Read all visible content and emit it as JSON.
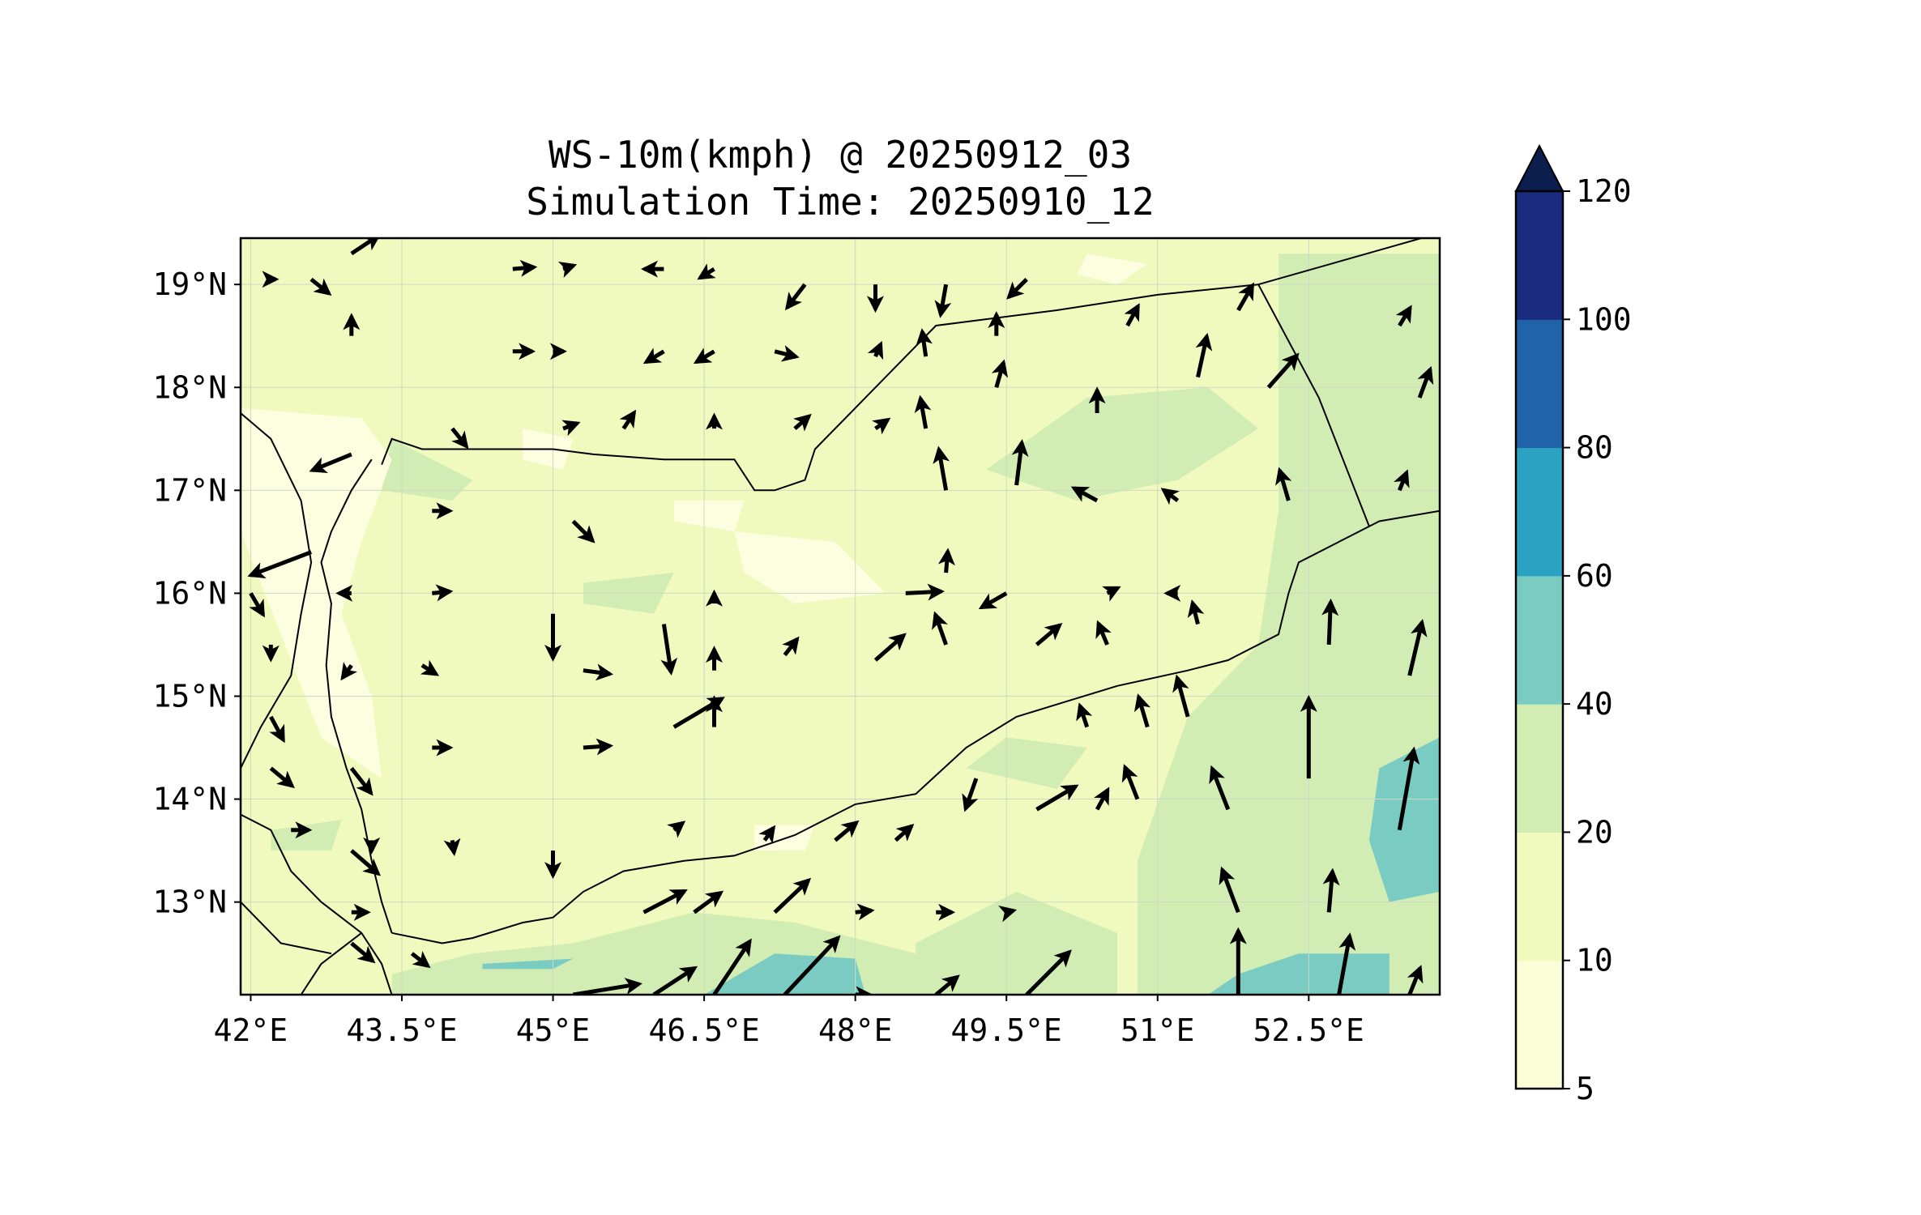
{
  "title": {
    "line1": "WS-10m(kmph) @ 20250912_03",
    "line2": "Simulation Time: 20250910_12"
  },
  "map": {
    "lon_range": [
      41.9,
      53.8
    ],
    "lat_range": [
      12.1,
      19.45
    ],
    "lon_ticks": [
      {
        "value": 42.0,
        "label": "42°E"
      },
      {
        "value": 43.5,
        "label": "43.5°E"
      },
      {
        "value": 45.0,
        "label": "45°E"
      },
      {
        "value": 46.5,
        "label": "46.5°E"
      },
      {
        "value": 48.0,
        "label": "48°E"
      },
      {
        "value": 49.5,
        "label": "49.5°E"
      },
      {
        "value": 51.0,
        "label": "51°E"
      },
      {
        "value": 52.5,
        "label": "52.5°E"
      }
    ],
    "lat_ticks": [
      {
        "value": 19,
        "label": "19°N"
      },
      {
        "value": 18,
        "label": "18°N"
      },
      {
        "value": 17,
        "label": "17°N"
      },
      {
        "value": 16,
        "label": "16°N"
      },
      {
        "value": 15,
        "label": "15°N"
      },
      {
        "value": 14,
        "label": "14°N"
      },
      {
        "value": 13,
        "label": "13°N"
      }
    ],
    "gridlines": true,
    "colors": {
      "land_fill": "#f0f9be",
      "mid_fill": "#d2edb4",
      "high_fill": "#7accc3",
      "low_fill": "#fdfee0",
      "border": "#000000",
      "arrow": "#000000"
    }
  },
  "colorbar": {
    "labels": [
      "5",
      "10",
      "20",
      "40",
      "60",
      "80",
      "100",
      "120"
    ],
    "levels": [
      5,
      10,
      20,
      40,
      60,
      80,
      100,
      120
    ],
    "colors": [
      "#fcfed8",
      "#f0f9be",
      "#d2edb4",
      "#7accc3",
      "#2ca2c2",
      "#2163a9",
      "#1b2b7f"
    ],
    "extend_color": "#0c1e4d",
    "extend": "max"
  },
  "wind_vectors": [
    {
      "lon": 42.2,
      "lat": 19.05,
      "u": 0.0,
      "v": 0.0
    },
    {
      "lon": 42.6,
      "lat": 19.05,
      "u": 1.0,
      "v": -0.8
    },
    {
      "lon": 43.0,
      "lat": 19.3,
      "u": 1.5,
      "v": 1.0
    },
    {
      "lon": 43.0,
      "lat": 18.5,
      "u": 0.0,
      "v": 1.1
    },
    {
      "lon": 43.0,
      "lat": 17.35,
      "u": -2.2,
      "v": -0.9
    },
    {
      "lon": 42.6,
      "lat": 16.4,
      "u": -3.4,
      "v": -1.3
    },
    {
      "lon": 44.6,
      "lat": 19.15,
      "u": 1.2,
      "v": 0.1
    },
    {
      "lon": 45.1,
      "lat": 19.15,
      "u": 0.6,
      "v": 0.2
    },
    {
      "lon": 46.1,
      "lat": 19.15,
      "u": -1.1,
      "v": 0.0
    },
    {
      "lon": 46.6,
      "lat": 19.15,
      "u": -0.8,
      "v": -0.5
    },
    {
      "lon": 47.5,
      "lat": 19.0,
      "u": -1.0,
      "v": -1.3
    },
    {
      "lon": 48.2,
      "lat": 19.0,
      "u": 0.0,
      "v": -1.4
    },
    {
      "lon": 48.9,
      "lat": 19.0,
      "u": -0.3,
      "v": -1.7
    },
    {
      "lon": 49.7,
      "lat": 19.05,
      "u": -1.0,
      "v": -1.0
    },
    {
      "lon": 44.6,
      "lat": 18.35,
      "u": 1.1,
      "v": 0.0
    },
    {
      "lon": 45.0,
      "lat": 18.35,
      "u": 0.6,
      "v": 0.0
    },
    {
      "lon": 46.1,
      "lat": 18.35,
      "u": -1.0,
      "v": -0.6
    },
    {
      "lon": 46.6,
      "lat": 18.35,
      "u": -1.0,
      "v": -0.6
    },
    {
      "lon": 47.2,
      "lat": 18.35,
      "u": 1.2,
      "v": -0.3
    },
    {
      "lon": 48.2,
      "lat": 18.3,
      "u": 0.3,
      "v": 0.7
    },
    {
      "lon": 44.0,
      "lat": 17.6,
      "u": 0.8,
      "v": -1.0
    },
    {
      "lon": 45.1,
      "lat": 17.6,
      "u": 0.8,
      "v": 0.3
    },
    {
      "lon": 45.7,
      "lat": 17.6,
      "u": 0.6,
      "v": 0.9
    },
    {
      "lon": 46.6,
      "lat": 17.6,
      "u": 0.0,
      "v": 0.7
    },
    {
      "lon": 47.4,
      "lat": 17.6,
      "u": 0.8,
      "v": 0.7
    },
    {
      "lon": 48.2,
      "lat": 17.6,
      "u": 0.7,
      "v": 0.5
    },
    {
      "lon": 48.7,
      "lat": 17.6,
      "u": -0.3,
      "v": 1.7
    },
    {
      "lon": 48.7,
      "lat": 18.3,
      "u": -0.2,
      "v": 1.4
    },
    {
      "lon": 49.4,
      "lat": 18.0,
      "u": 0.4,
      "v": 1.4
    },
    {
      "lon": 49.4,
      "lat": 18.5,
      "u": 0.0,
      "v": 1.2
    },
    {
      "lon": 49.6,
      "lat": 17.05,
      "u": 0.3,
      "v": 2.4
    },
    {
      "lon": 50.4,
      "lat": 17.75,
      "u": 0.0,
      "v": 1.3
    },
    {
      "lon": 50.7,
      "lat": 18.6,
      "u": 0.6,
      "v": 1.1
    },
    {
      "lon": 51.4,
      "lat": 18.1,
      "u": 0.5,
      "v": 2.3
    },
    {
      "lon": 51.8,
      "lat": 18.75,
      "u": 0.8,
      "v": 1.4
    },
    {
      "lon": 52.1,
      "lat": 18.0,
      "u": 1.6,
      "v": 1.8
    },
    {
      "lon": 53.4,
      "lat": 18.6,
      "u": 0.6,
      "v": 1.0
    },
    {
      "lon": 53.6,
      "lat": 17.9,
      "u": 0.6,
      "v": 1.6
    },
    {
      "lon": 53.4,
      "lat": 17.0,
      "u": 0.4,
      "v": 1.0
    },
    {
      "lon": 52.3,
      "lat": 16.9,
      "u": -0.5,
      "v": 1.7
    },
    {
      "lon": 50.4,
      "lat": 16.9,
      "u": -1.3,
      "v": 0.7
    },
    {
      "lon": 51.2,
      "lat": 16.9,
      "u": -0.8,
      "v": 0.6
    },
    {
      "lon": 48.9,
      "lat": 17.0,
      "u": -0.4,
      "v": 2.3
    },
    {
      "lon": 43.8,
      "lat": 16.8,
      "u": 1.0,
      "v": 0.0
    },
    {
      "lon": 45.2,
      "lat": 16.7,
      "u": 1.1,
      "v": -1.1
    },
    {
      "lon": 43.0,
      "lat": 16.0,
      "u": -0.7,
      "v": 0.0
    },
    {
      "lon": 43.8,
      "lat": 16.0,
      "u": 1.0,
      "v": 0.1
    },
    {
      "lon": 45.0,
      "lat": 15.8,
      "u": 0.0,
      "v": -2.5
    },
    {
      "lon": 46.1,
      "lat": 15.7,
      "u": 0.4,
      "v": -2.7
    },
    {
      "lon": 46.6,
      "lat": 15.9,
      "u": 0.0,
      "v": 0.6
    },
    {
      "lon": 48.5,
      "lat": 16.0,
      "u": 2.0,
      "v": 0.1
    },
    {
      "lon": 48.9,
      "lat": 16.2,
      "u": 0.1,
      "v": 1.2
    },
    {
      "lon": 49.5,
      "lat": 16.0,
      "u": -1.4,
      "v": -0.8
    },
    {
      "lon": 50.5,
      "lat": 16.0,
      "u": 0.6,
      "v": 0.3
    },
    {
      "lon": 51.2,
      "lat": 16.0,
      "u": -0.6,
      "v": 0.0
    },
    {
      "lon": 42.0,
      "lat": 16.0,
      "u": 0.7,
      "v": -1.2
    },
    {
      "lon": 42.2,
      "lat": 15.5,
      "u": 0.0,
      "v": -0.8
    },
    {
      "lon": 43.0,
      "lat": 15.3,
      "u": -0.5,
      "v": -0.7
    },
    {
      "lon": 43.7,
      "lat": 15.3,
      "u": 0.8,
      "v": -0.5
    },
    {
      "lon": 45.3,
      "lat": 15.25,
      "u": 1.5,
      "v": -0.2
    },
    {
      "lon": 46.6,
      "lat": 15.25,
      "u": 0.0,
      "v": 1.2
    },
    {
      "lon": 47.3,
      "lat": 15.4,
      "u": 0.7,
      "v": 0.9
    },
    {
      "lon": 48.2,
      "lat": 15.35,
      "u": 1.6,
      "v": 1.4
    },
    {
      "lon": 48.9,
      "lat": 15.5,
      "u": -0.6,
      "v": 1.7
    },
    {
      "lon": 49.8,
      "lat": 15.5,
      "u": 1.3,
      "v": 1.1
    },
    {
      "lon": 50.5,
      "lat": 15.5,
      "u": -0.5,
      "v": 1.2
    },
    {
      "lon": 51.4,
      "lat": 15.7,
      "u": -0.3,
      "v": 1.2
    },
    {
      "lon": 51.3,
      "lat": 14.8,
      "u": -0.6,
      "v": 2.2
    },
    {
      "lon": 42.2,
      "lat": 14.8,
      "u": 0.7,
      "v": -1.3
    },
    {
      "lon": 43.8,
      "lat": 14.5,
      "u": 1.0,
      "v": 0.0
    },
    {
      "lon": 45.3,
      "lat": 14.5,
      "u": 1.5,
      "v": 0.1
    },
    {
      "lon": 46.2,
      "lat": 14.7,
      "u": 2.7,
      "v": 1.6
    },
    {
      "lon": 46.6,
      "lat": 14.7,
      "u": 0.0,
      "v": 1.6
    },
    {
      "lon": 42.2,
      "lat": 14.3,
      "u": 1.2,
      "v": -1.0
    },
    {
      "lon": 43.0,
      "lat": 14.3,
      "u": 1.1,
      "v": -1.4
    },
    {
      "lon": 49.2,
      "lat": 14.2,
      "u": -0.6,
      "v": -1.7
    },
    {
      "lon": 49.8,
      "lat": 13.9,
      "u": 2.2,
      "v": 1.3
    },
    {
      "lon": 50.4,
      "lat": 13.9,
      "u": 0.6,
      "v": 1.1
    },
    {
      "lon": 50.8,
      "lat": 14.0,
      "u": -0.7,
      "v": 1.8
    },
    {
      "lon": 50.3,
      "lat": 14.7,
      "u": -0.4,
      "v": 1.2
    },
    {
      "lon": 50.9,
      "lat": 14.7,
      "u": -0.5,
      "v": 1.7
    },
    {
      "lon": 51.7,
      "lat": 13.9,
      "u": -0.9,
      "v": 2.3
    },
    {
      "lon": 51.8,
      "lat": 12.9,
      "u": -0.9,
      "v": 2.4
    },
    {
      "lon": 52.5,
      "lat": 14.2,
      "u": 0.0,
      "v": 4.5
    },
    {
      "lon": 52.7,
      "lat": 12.9,
      "u": 0.2,
      "v": 2.3
    },
    {
      "lon": 52.8,
      "lat": 12.1,
      "u": 0.6,
      "v": 3.3
    },
    {
      "lon": 52.7,
      "lat": 15.5,
      "u": 0.1,
      "v": 2.4
    },
    {
      "lon": 53.5,
      "lat": 15.2,
      "u": 0.7,
      "v": 3.0
    },
    {
      "lon": 53.4,
      "lat": 13.7,
      "u": 0.8,
      "v": 4.5
    },
    {
      "lon": 53.5,
      "lat": 12.1,
      "u": 0.6,
      "v": 1.5
    },
    {
      "lon": 51.8,
      "lat": 12.1,
      "u": 0.0,
      "v": 3.6
    },
    {
      "lon": 43.0,
      "lat": 13.5,
      "u": 1.5,
      "v": -1.3
    },
    {
      "lon": 43.0,
      "lat": 12.9,
      "u": 0.9,
      "v": 0.0
    },
    {
      "lon": 43.0,
      "lat": 12.6,
      "u": 1.2,
      "v": -1.0
    },
    {
      "lon": 42.4,
      "lat": 13.7,
      "u": 1.0,
      "v": 0.0
    },
    {
      "lon": 43.2,
      "lat": 13.6,
      "u": 0.0,
      "v": -0.6
    },
    {
      "lon": 44.0,
      "lat": 13.6,
      "u": 0.1,
      "v": -0.7
    },
    {
      "lon": 45.0,
      "lat": 13.5,
      "u": 0.0,
      "v": -1.4
    },
    {
      "lon": 46.2,
      "lat": 13.7,
      "u": 0.5,
      "v": 0.4
    },
    {
      "lon": 45.9,
      "lat": 12.9,
      "u": 2.3,
      "v": 1.2
    },
    {
      "lon": 46.4,
      "lat": 12.9,
      "u": 1.5,
      "v": 1.1
    },
    {
      "lon": 47.2,
      "lat": 12.9,
      "u": 1.9,
      "v": 1.8
    },
    {
      "lon": 48.0,
      "lat": 12.9,
      "u": 0.9,
      "v": 0.1
    },
    {
      "lon": 48.8,
      "lat": 12.9,
      "u": 0.9,
      "v": 0.0
    },
    {
      "lon": 49.5,
      "lat": 12.9,
      "u": 0.4,
      "v": 0.1
    },
    {
      "lon": 47.8,
      "lat": 13.6,
      "u": 1.2,
      "v": 1.0
    },
    {
      "lon": 48.4,
      "lat": 13.6,
      "u": 0.9,
      "v": 0.8
    },
    {
      "lon": 47.1,
      "lat": 13.6,
      "u": 0.5,
      "v": 0.7
    },
    {
      "lon": 45.2,
      "lat": 12.1,
      "u": 3.7,
      "v": 0.6
    },
    {
      "lon": 46.0,
      "lat": 12.1,
      "u": 2.3,
      "v": 1.5
    },
    {
      "lon": 46.6,
      "lat": 12.1,
      "u": 2.0,
      "v": 3.0
    },
    {
      "lon": 47.3,
      "lat": 12.1,
      "u": 3.0,
      "v": 3.2
    },
    {
      "lon": 48.0,
      "lat": 12.1,
      "u": 0.8,
      "v": 0.0
    },
    {
      "lon": 48.8,
      "lat": 12.1,
      "u": 1.2,
      "v": 1.0
    },
    {
      "lon": 49.7,
      "lat": 12.1,
      "u": 2.4,
      "v": 2.4
    },
    {
      "lon": 43.6,
      "lat": 12.5,
      "u": 0.9,
      "v": -0.7
    }
  ]
}
